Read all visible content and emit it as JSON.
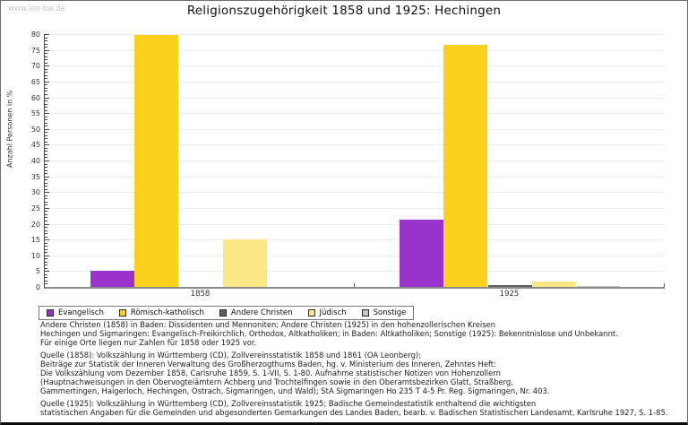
{
  "page": {
    "watermark": "www.leo-bw.de",
    "title": "Religionszugehörigkeit 1858 und 1925: Hechingen"
  },
  "chart_data": {
    "type": "bar",
    "title": "Religionszugehörigkeit 1858 und 1925: Hechingen",
    "xlabel": "",
    "ylabel": "Anzahl Personen in %",
    "ylim": [
      0,
      80
    ],
    "ytick_step": 5,
    "grid": true,
    "legend_position": "bottom",
    "categories": [
      "1858",
      "1925"
    ],
    "series": [
      {
        "name": "Evangelisch",
        "color": "#9933cc",
        "values": [
          5.0,
          21.3
        ]
      },
      {
        "name": "Römisch-katholisch",
        "color": "#fbd11c",
        "values": [
          79.8,
          76.5
        ]
      },
      {
        "name": "Andere Christen",
        "color": "#5f5f5f",
        "values": [
          0,
          0.6
        ]
      },
      {
        "name": "Jüdisch",
        "color": "#fbe783",
        "values": [
          14.9,
          1.7
        ]
      },
      {
        "name": "Sonstige",
        "color": "#c2c2c2",
        "values": [
          0,
          0.3
        ]
      }
    ]
  },
  "notes": {
    "block1": [
      "Andere Christen (1858) in Baden: Dissidenten und Mennoniten; Andere Christen (1925) in den hohenzollerischen Kreisen",
      "Hechingen und Sigmaringen: Evangelisch-Freikirchlich, Orthodox, Altkatholiken; in Baden: Altkatholiken; Sonstige (1925): Bekenntnislose und Unbekannt.",
      "Für einige Orte liegen nur Zahlen für 1858 oder 1925 vor."
    ],
    "quelle_1858": [
      "Quelle (1858): Volkszählung in Württemberg (CD), Zollvereinsstatistik 1858 und 1861 (OA Leonberg);",
      "Beiträge zur Statistik der Inneren Verwaltung des Großherzogthums Baden, hg. v. Ministerium des Inneren, Zehntes Heft:",
      "Die Volkszählung vom Dezember 1858, Carlsruhe 1859, S. 1-VII, S. 1-80. Aufnahme statistischer Notizen von Hohenzollern",
      "(Hauptnachweisungen in den Obervogteiämtern Achberg und Trochtelfingen sowie in den Oberamtsbezirken Glatt, Straßberg,",
      "Gammertingen, Haigerloch, Hechingen, Ostrach, Sigmaringen, und Wald); StA Sigmaringen Ho 235 T 4-5 Pr. Reg. Sigmaringen, Nr. 403."
    ],
    "quelle_1925": [
      "Quelle (1925): Volkszählung in Württemberg (CD), Zollvereinsstatistik 1925; Badische Gemeindestatistik enthaltend die wichtigsten",
      "statistischen Angaben für die Gemeinden und abgesonderten Gemarkungen des Landes Baden, bearb. v. Badischen Statistischen Landesamt, Karlsruhe 1927, S. 1-85."
    ]
  }
}
